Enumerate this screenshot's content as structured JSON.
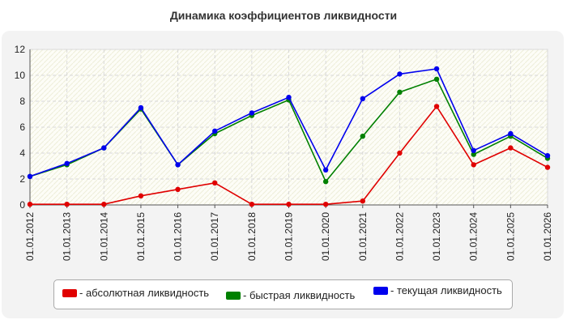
{
  "chart_data": {
    "type": "line",
    "title": "Динамика коэффициентов ликвидности",
    "xlabel": "",
    "ylabel": "",
    "categories": [
      "01.01.2012",
      "01.01.2013",
      "01.01.2014",
      "01.01.2015",
      "01.01.2016",
      "01.01.2017",
      "01.01.2018",
      "01.01.2019",
      "01.01.2020",
      "01.01.2021",
      "01.01.2022",
      "01.01.2023",
      "01.01.2024",
      "01.01.2025",
      "01.01.2026"
    ],
    "ylim": [
      0,
      12
    ],
    "yticks": [
      "0",
      "2",
      "4",
      "6",
      "8",
      "10",
      "12"
    ],
    "grid": true,
    "legend_position": "bottom",
    "series": [
      {
        "name": "- абсолютная ликвидность",
        "color": "#e00000",
        "values": [
          0.05,
          0.05,
          0.05,
          0.7,
          1.2,
          1.7,
          0.05,
          0.05,
          0.05,
          0.3,
          4.0,
          7.6,
          3.1,
          4.4,
          2.9
        ]
      },
      {
        "name": "- быстрая ликвидность",
        "color": "#008000",
        "values": [
          2.2,
          3.1,
          4.4,
          7.4,
          3.1,
          5.5,
          6.9,
          8.1,
          1.8,
          5.3,
          8.7,
          9.7,
          3.9,
          5.3,
          3.6
        ]
      },
      {
        "name": "- текущая ликвидность",
        "color": "#0000ee",
        "values": [
          2.2,
          3.2,
          4.4,
          7.5,
          3.1,
          5.7,
          7.1,
          8.3,
          2.7,
          8.2,
          10.1,
          10.5,
          4.2,
          5.5,
          3.8
        ]
      }
    ]
  }
}
